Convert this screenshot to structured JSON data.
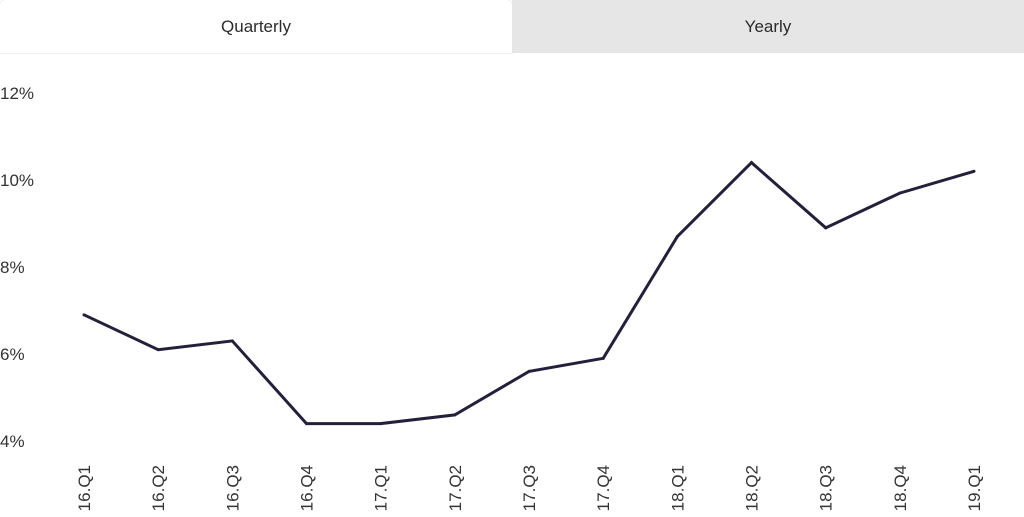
{
  "tabs": [
    {
      "label": "Quarterly",
      "active": true
    },
    {
      "label": "Yearly",
      "active": false
    }
  ],
  "colors": {
    "line": "#25203a",
    "tick_text": "#333333",
    "inactive_tab_bg": "#e6e6e6"
  },
  "chart_data": {
    "type": "line",
    "title": "",
    "xlabel": "",
    "ylabel": "",
    "ylim": [
      4,
      12
    ],
    "y_ticks": [
      {
        "value": 12,
        "label": "12%"
      },
      {
        "value": 10,
        "label": "10%"
      },
      {
        "value": 8,
        "label": "8%"
      },
      {
        "value": 6,
        "label": "6%"
      },
      {
        "value": 4,
        "label": "4%"
      }
    ],
    "grid": false,
    "categories": [
      "16.Q1",
      "16.Q2",
      "16.Q3",
      "16.Q4",
      "17.Q1",
      "17.Q2",
      "17.Q3",
      "17.Q4",
      "18.Q1",
      "18.Q2",
      "18.Q3",
      "18.Q4",
      "19.Q1"
    ],
    "series": [
      {
        "values": [
          6.9,
          6.1,
          6.3,
          4.4,
          4.4,
          4.6,
          5.6,
          5.9,
          8.7,
          10.4,
          8.9,
          9.7,
          10.2
        ]
      }
    ]
  }
}
